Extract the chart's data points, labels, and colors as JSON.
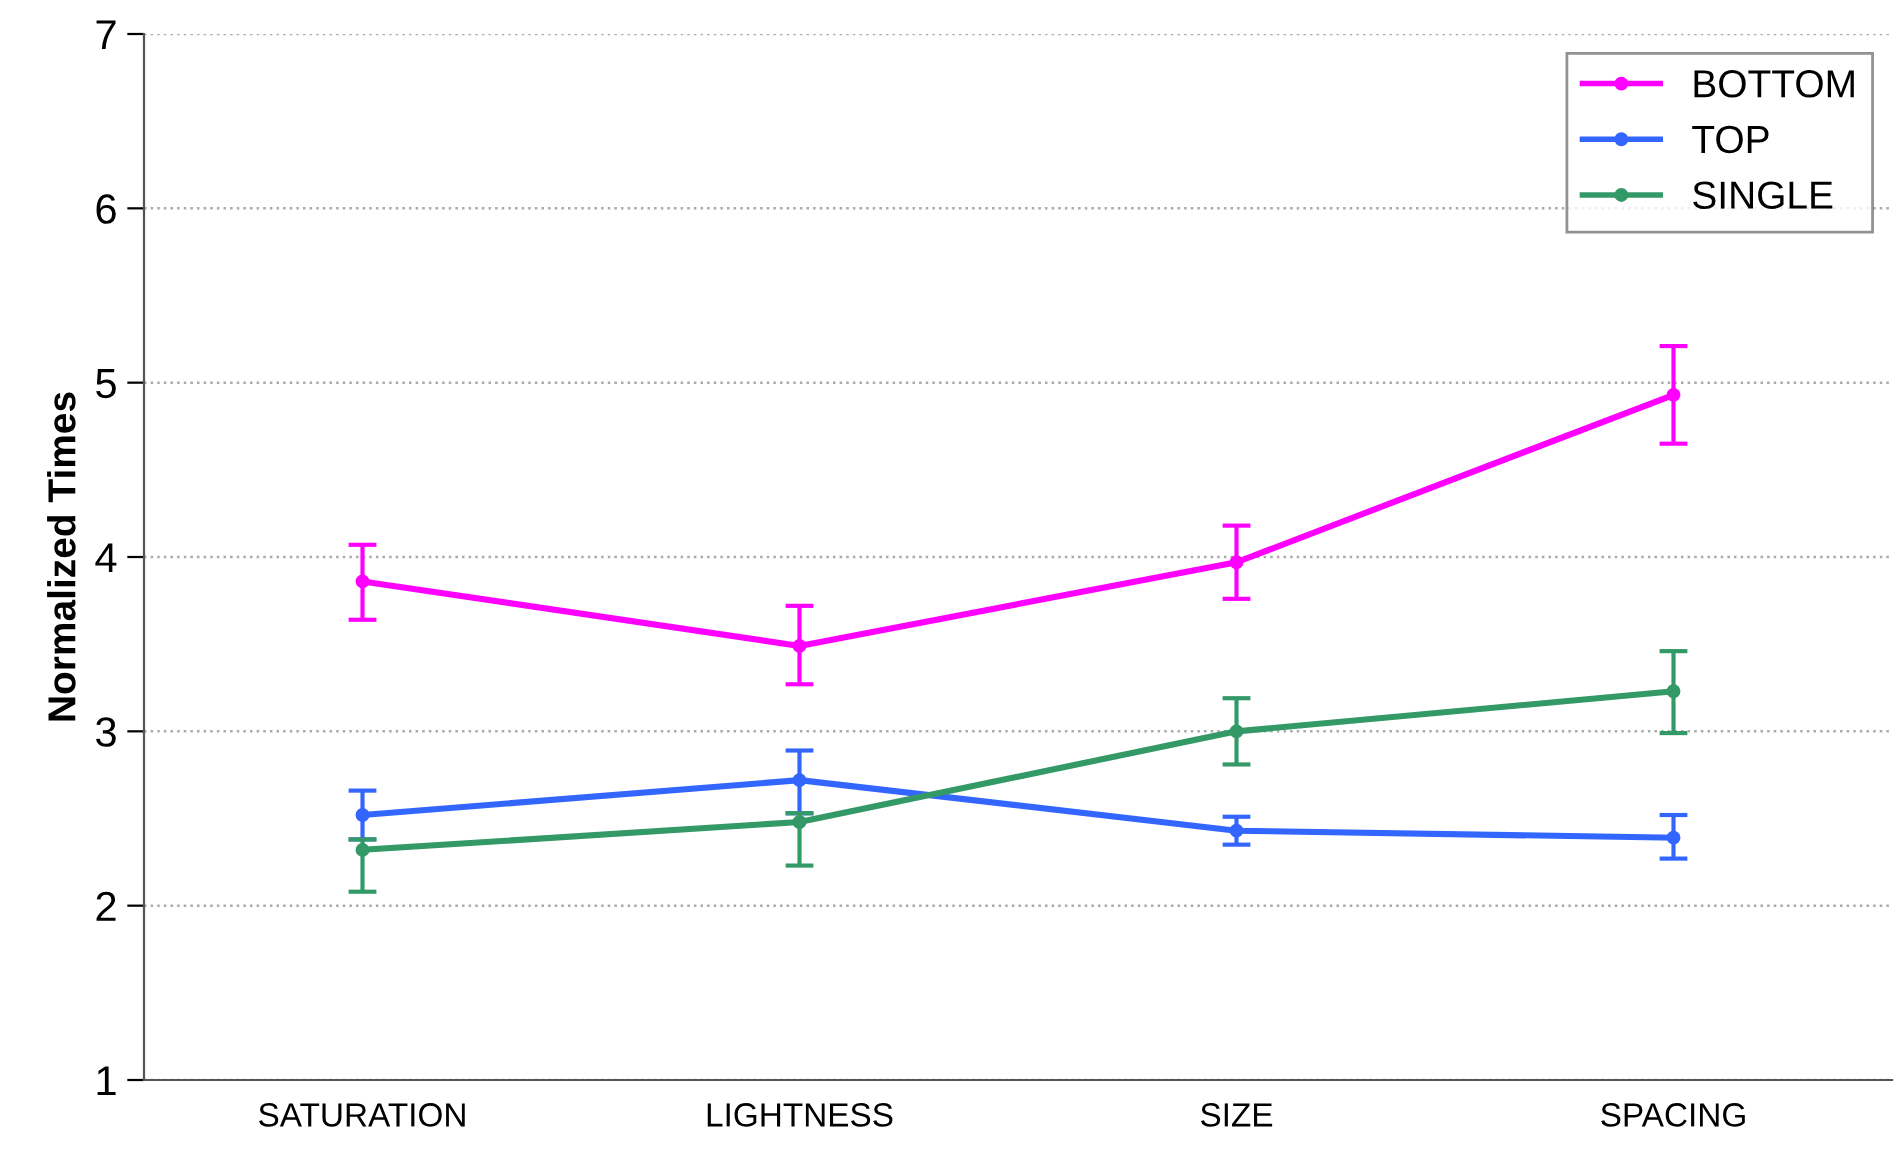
{
  "chart_data": {
    "type": "line",
    "ylabel": "Normalized Times",
    "categories": [
      "SATURATION",
      "LIGHTNESS",
      "SIZE",
      "SPACING"
    ],
    "ylim": [
      1,
      7
    ],
    "yticks": [
      1,
      2,
      3,
      4,
      5,
      6,
      7
    ],
    "grid": "y",
    "legend": "top right",
    "marker": "circle",
    "line_style": "solid",
    "series": [
      {
        "name": "BOTTOM",
        "color": "#ff00ff",
        "values": [
          3.86,
          3.49,
          3.97,
          4.93
        ],
        "errors": [
          [
            3.64,
            4.07
          ],
          [
            3.27,
            3.72
          ],
          [
            3.76,
            4.18
          ],
          [
            4.65,
            5.21
          ]
        ]
      },
      {
        "name": "TOP",
        "color": "#3366ff",
        "values": [
          2.52,
          2.72,
          2.43,
          2.39
        ],
        "errors": [
          [
            2.38,
            2.66
          ],
          [
            2.53,
            2.89
          ],
          [
            2.35,
            2.51
          ],
          [
            2.27,
            2.52
          ]
        ]
      },
      {
        "name": "SINGLE",
        "color": "#339966",
        "values": [
          2.32,
          2.48,
          3.0,
          3.23
        ],
        "errors": [
          [
            2.08,
            2.38
          ],
          [
            2.23,
            2.53
          ],
          [
            2.81,
            3.19
          ],
          [
            2.99,
            3.46
          ]
        ]
      }
    ]
  }
}
